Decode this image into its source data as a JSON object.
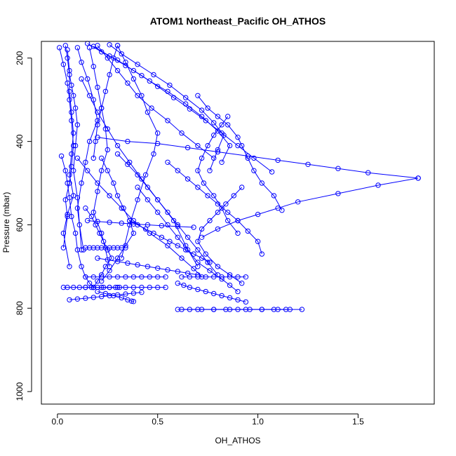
{
  "chart_data": {
    "type": "scatter",
    "title": "ATOM1 Northeast_Pacific OH_ATHOS",
    "xlabel": "OH_ATHOS",
    "ylabel": "Pressure (mbar)",
    "xlim": [
      -0.08,
      1.88
    ],
    "ylim": [
      1030,
      160
    ],
    "y_reversed": true,
    "x_ticks": [
      0.0,
      0.5,
      1.0,
      1.5
    ],
    "x_tick_labels": [
      "0.0",
      "0.5",
      "1.0",
      "1.5"
    ],
    "y_ticks": [
      200,
      400,
      600,
      800,
      1000
    ],
    "y_tick_labels": [
      "200",
      "400",
      "600",
      "800",
      "1000"
    ],
    "grid": false,
    "legend": "none",
    "color": "#0000ff",
    "marker": "open-circle",
    "series": [
      {
        "x": [
          0.01,
          0.03,
          0.05,
          0.06,
          0.07,
          0.08,
          0.07,
          0.06,
          0.04,
          0.05,
          0.03
        ],
        "y": [
          175,
          215,
          260,
          300,
          350,
          410,
          460,
          500,
          540,
          580,
          655
        ]
      },
      {
        "x": [
          0.05,
          0.06,
          0.06,
          0.07,
          0.08,
          0.07,
          0.06,
          0.08,
          0.05,
          0.03,
          0.06
        ],
        "y": [
          180,
          230,
          280,
          330,
          380,
          430,
          480,
          530,
          575,
          620,
          700
        ]
      },
      {
        "x": [
          0.04,
          0.05,
          0.06,
          0.07,
          0.08,
          0.09,
          0.1,
          0.09,
          0.08,
          0.1,
          0.12
        ],
        "y": [
          170,
          200,
          240,
          265,
          290,
          320,
          360,
          410,
          470,
          535,
          660
        ]
      },
      {
        "x": [
          0.1,
          0.12,
          0.15,
          0.18,
          0.2,
          0.16,
          0.14,
          0.12,
          0.1,
          0.11,
          0.13
        ],
        "y": [
          175,
          210,
          250,
          300,
          350,
          400,
          450,
          500,
          560,
          600,
          660
        ]
      },
      {
        "x": [
          0.02,
          0.04,
          0.05,
          0.06,
          0.07,
          0.09,
          0.1,
          0.12,
          0.14,
          0.16,
          0.18
        ],
        "y": [
          435,
          470,
          500,
          535,
          580,
          620,
          660,
          700,
          725,
          740,
          750
        ]
      },
      {
        "x": [
          0.16,
          0.18,
          0.2,
          0.22,
          0.24,
          0.25,
          0.22,
          0.2,
          0.18,
          0.22,
          0.26
        ],
        "y": [
          175,
          220,
          270,
          320,
          370,
          420,
          470,
          520,
          570,
          620,
          700
        ]
      },
      {
        "x": [
          0.3,
          0.34,
          0.38,
          0.42,
          0.45,
          0.5,
          0.48,
          0.44,
          0.4,
          0.36,
          0.32
        ],
        "y": [
          170,
          210,
          250,
          290,
          330,
          380,
          430,
          480,
          540,
          600,
          680
        ]
      },
      {
        "x": [
          0.2,
          0.25,
          0.3,
          0.35,
          0.4,
          0.47,
          0.55,
          0.62,
          0.7,
          0.78
        ],
        "y": [
          170,
          200,
          230,
          260,
          290,
          320,
          350,
          380,
          410,
          440
        ]
      },
      {
        "x": [
          0.15,
          0.22,
          0.3,
          0.38,
          0.46,
          0.55,
          0.64,
          0.72,
          0.8,
          0.86,
          0.82
        ],
        "y": [
          165,
          185,
          205,
          230,
          255,
          280,
          310,
          340,
          375,
          410,
          450
        ]
      },
      {
        "x": [
          0.26,
          0.32,
          0.4,
          0.48,
          0.56,
          0.64,
          0.72,
          0.78,
          0.83,
          0.8,
          0.76
        ],
        "y": [
          168,
          190,
          215,
          240,
          265,
          295,
          325,
          355,
          385,
          420,
          470
        ]
      },
      {
        "x": [
          0.18,
          0.26,
          0.34,
          0.42,
          0.5,
          0.58,
          0.66,
          0.74,
          0.82,
          0.9,
          0.98,
          1.07
        ],
        "y": [
          172,
          195,
          218,
          242,
          268,
          295,
          322,
          350,
          380,
          410,
          440,
          473
        ]
      },
      {
        "x": [
          0.7,
          0.75,
          0.8,
          0.85,
          0.9,
          0.92,
          0.95,
          0.98,
          1.02,
          1.08,
          1.12
        ],
        "y": [
          290,
          320,
          340,
          360,
          390,
          410,
          440,
          470,
          500,
          530,
          565
        ]
      },
      {
        "x": [
          0.85,
          0.82,
          0.78,
          0.75,
          0.72,
          0.7,
          0.73,
          0.78,
          0.82,
          0.85,
          0.9
        ],
        "y": [
          340,
          360,
          385,
          410,
          440,
          470,
          500,
          530,
          560,
          590,
          620
        ]
      },
      {
        "x": [
          0.2,
          0.35,
          0.5,
          0.65,
          0.8,
          0.95,
          1.1,
          1.25,
          1.4,
          1.55,
          1.8
        ],
        "y": [
          390,
          400,
          405,
          415,
          425,
          435,
          445,
          455,
          465,
          475,
          488
        ]
      },
      {
        "x": [
          1.8,
          1.6,
          1.4,
          1.2,
          1.1,
          1.0,
          0.9,
          0.8,
          0.72
        ],
        "y": [
          488,
          505,
          525,
          545,
          560,
          575,
          590,
          610,
          630
        ]
      },
      {
        "x": [
          0.3,
          0.35,
          0.4,
          0.45,
          0.5,
          0.55,
          0.6,
          0.65,
          0.7,
          0.75,
          0.8
        ],
        "y": [
          430,
          455,
          480,
          510,
          540,
          570,
          600,
          630,
          660,
          690,
          720
        ]
      },
      {
        "x": [
          0.92,
          0.88,
          0.84,
          0.8,
          0.76,
          0.72,
          0.7,
          0.74,
          0.8,
          0.86,
          0.92
        ],
        "y": [
          510,
          530,
          550,
          570,
          590,
          610,
          640,
          670,
          700,
          720,
          740
        ]
      },
      {
        "x": [
          0.55,
          0.6,
          0.65,
          0.7,
          0.75,
          0.8,
          0.85,
          0.9,
          0.95,
          1.0,
          1.02
        ],
        "y": [
          450,
          470,
          490,
          510,
          530,
          550,
          570,
          590,
          615,
          640,
          670
        ]
      },
      {
        "x": [
          0.4,
          0.45,
          0.5,
          0.55,
          0.6,
          0.65,
          0.7,
          0.76,
          0.82,
          0.86,
          0.9
        ],
        "y": [
          510,
          540,
          570,
          600,
          630,
          660,
          690,
          710,
          730,
          745,
          760
        ]
      },
      {
        "x": [
          0.12,
          0.16,
          0.2,
          0.25,
          0.3,
          0.36,
          0.42,
          0.5,
          0.58,
          0.64,
          0.7
        ],
        "y": [
          250,
          290,
          330,
          370,
          410,
          450,
          490,
          540,
          590,
          650,
          700
        ]
      },
      {
        "x": [
          0.1,
          0.15,
          0.2,
          0.26,
          0.32,
          0.38,
          0.46,
          0.55,
          0.62,
          0.68,
          0.72
        ],
        "y": [
          440,
          470,
          500,
          530,
          560,
          590,
          620,
          650,
          680,
          705,
          725
        ]
      },
      {
        "x": [
          0.22,
          0.25,
          0.28,
          0.3,
          0.33,
          0.36,
          0.38,
          0.34,
          0.3,
          0.26,
          0.22
        ],
        "y": [
          440,
          470,
          500,
          530,
          560,
          590,
          620,
          650,
          680,
          710,
          735
        ]
      },
      {
        "x": [
          0.14,
          0.17,
          0.19,
          0.21,
          0.23,
          0.25,
          0.27,
          0.24,
          0.22,
          0.2,
          0.18
        ],
        "y": [
          560,
          580,
          600,
          620,
          640,
          660,
          680,
          700,
          720,
          735,
          750
        ]
      },
      {
        "x": [
          0.03,
          0.05,
          0.08,
          0.11,
          0.14,
          0.17,
          0.2,
          0.23,
          0.26,
          0.29,
          0.31
        ],
        "y": [
          750,
          750,
          750,
          750,
          750,
          750,
          750,
          750,
          750,
          750,
          750
        ]
      },
      {
        "x": [
          0.14,
          0.18,
          0.22,
          0.26,
          0.3,
          0.34,
          0.38,
          0.42,
          0.46,
          0.5,
          0.54
        ],
        "y": [
          750,
          750,
          750,
          750,
          750,
          750,
          750,
          750,
          750,
          750,
          750
        ]
      },
      {
        "x": [
          0.14,
          0.18,
          0.22,
          0.26,
          0.3,
          0.34,
          0.38,
          0.42,
          0.46,
          0.5,
          0.54
        ],
        "y": [
          725,
          725,
          725,
          725,
          725,
          725,
          725,
          725,
          725,
          725,
          725
        ]
      },
      {
        "x": [
          0.62,
          0.66,
          0.7,
          0.74,
          0.78,
          0.82,
          0.86,
          0.9,
          0.94
        ],
        "y": [
          725,
          725,
          725,
          725,
          725,
          725,
          725,
          725,
          725
        ]
      },
      {
        "x": [
          0.6,
          0.66,
          0.72,
          0.78,
          0.84,
          0.9,
          0.96,
          1.02,
          1.08,
          1.14,
          1.22
        ],
        "y": [
          803,
          803,
          803,
          803,
          803,
          803,
          803,
          803,
          803,
          803,
          803
        ]
      },
      {
        "x": [
          0.62,
          0.7,
          0.78,
          0.86,
          0.94,
          1.02,
          1.1,
          1.16
        ],
        "y": [
          803,
          803,
          803,
          803,
          803,
          803,
          803,
          803
        ]
      },
      {
        "x": [
          0.2,
          0.24,
          0.28,
          0.32,
          0.35,
          0.37,
          0.38
        ],
        "y": [
          760,
          765,
          770,
          775,
          780,
          783,
          784
        ]
      },
      {
        "x": [
          0.14,
          0.16,
          0.18,
          0.2,
          0.22,
          0.24,
          0.26,
          0.28,
          0.3,
          0.32,
          0.34
        ],
        "y": [
          655,
          655,
          655,
          655,
          655,
          655,
          655,
          655,
          655,
          655,
          655
        ]
      },
      {
        "x": [
          0.36,
          0.4,
          0.44,
          0.48,
          0.52,
          0.56,
          0.6,
          0.64,
          0.68,
          0.72,
          0.76
        ],
        "y": [
          590,
          600,
          610,
          620,
          630,
          640,
          650,
          660,
          670,
          680,
          690
        ]
      },
      {
        "x": [
          0.6,
          0.63,
          0.66,
          0.7,
          0.74,
          0.78,
          0.82,
          0.86,
          0.9,
          0.94
        ],
        "y": [
          740,
          745,
          750,
          755,
          760,
          765,
          770,
          775,
          780,
          785
        ]
      },
      {
        "x": [
          0.15,
          0.2,
          0.26,
          0.32,
          0.38,
          0.45,
          0.52,
          0.6,
          0.68
        ],
        "y": [
          590,
          592,
          594,
          596,
          598,
          600,
          602,
          604,
          606
        ]
      },
      {
        "x": [
          0.06,
          0.1,
          0.14,
          0.18,
          0.22,
          0.26,
          0.3,
          0.34,
          0.38,
          0.42
        ],
        "y": [
          780,
          778,
          776,
          774,
          772,
          770,
          768,
          766,
          764,
          762
        ]
      },
      {
        "x": [
          0.2,
          0.25,
          0.3,
          0.35,
          0.4,
          0.45,
          0.5,
          0.55,
          0.6,
          0.65,
          0.7
        ],
        "y": [
          680,
          684,
          688,
          692,
          696,
          700,
          704,
          708,
          712,
          716,
          720
        ]
      },
      {
        "x": [
          0.3,
          0.28,
          0.26,
          0.24,
          0.22,
          0.2,
          0.19,
          0.18
        ],
        "y": [
          170,
          200,
          240,
          280,
          320,
          360,
          400,
          440
        ]
      }
    ]
  }
}
